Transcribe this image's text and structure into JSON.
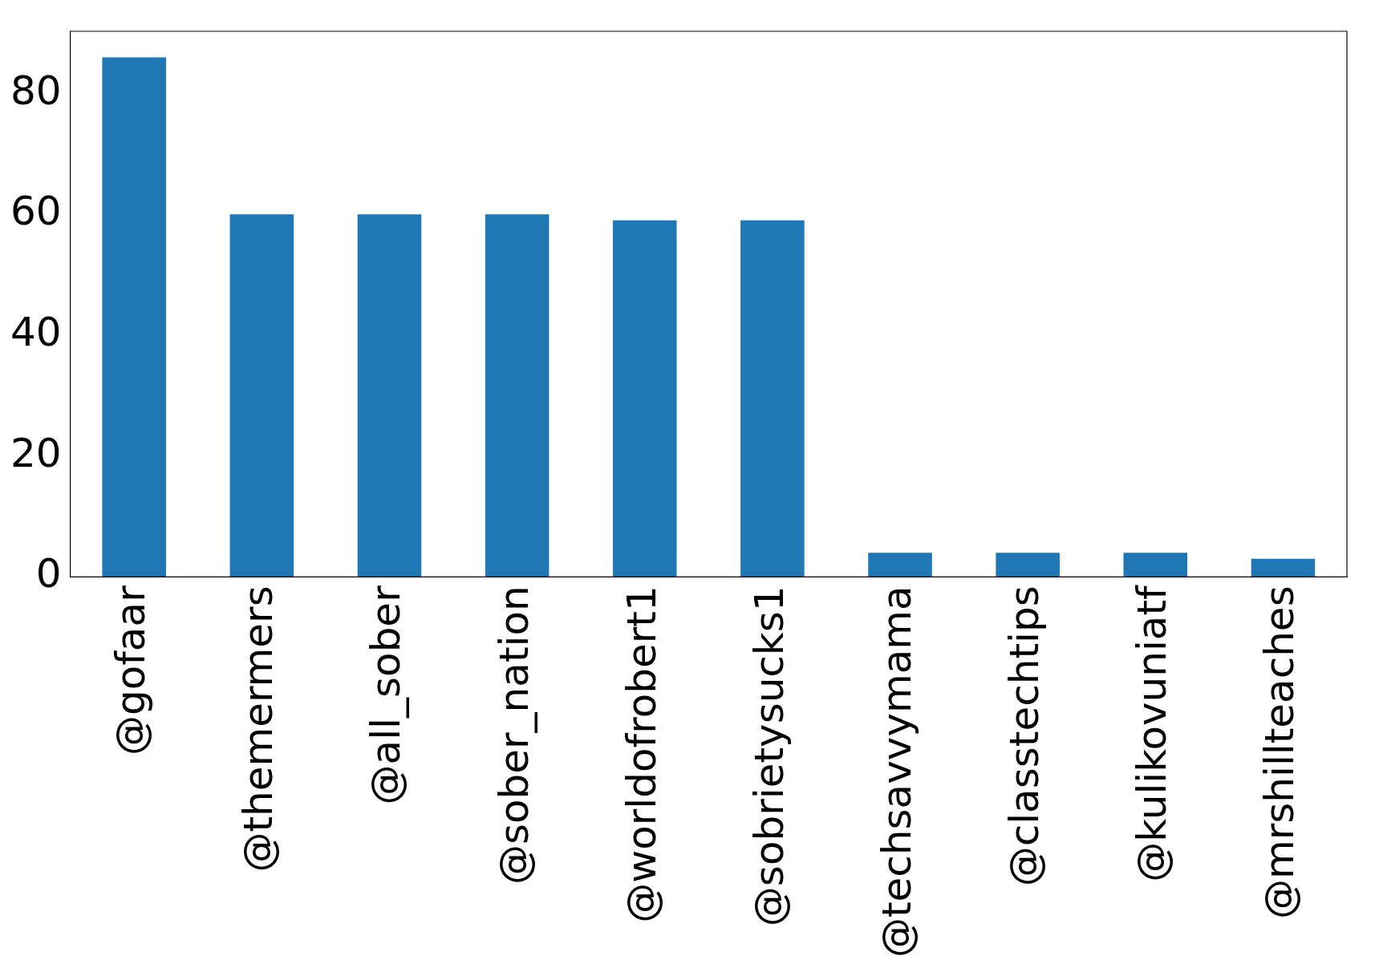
{
  "chart_data": {
    "type": "bar",
    "categories": [
      "@gofaar",
      "@themermers",
      "@all_sober",
      "@sober_nation",
      "@worldofrobert1",
      "@sobrietysucks1",
      "@techsavvymama",
      "@classtechtips",
      "@kulikovuniatf",
      "@mrshillteaches"
    ],
    "values": [
      86,
      60,
      60,
      60,
      59,
      59,
      4,
      4,
      4,
      3
    ],
    "color": "#1f77b4",
    "ylim": [
      0,
      90.3
    ],
    "yticks": [
      0,
      20,
      40,
      60,
      80
    ],
    "grid": false,
    "legend": false
  }
}
